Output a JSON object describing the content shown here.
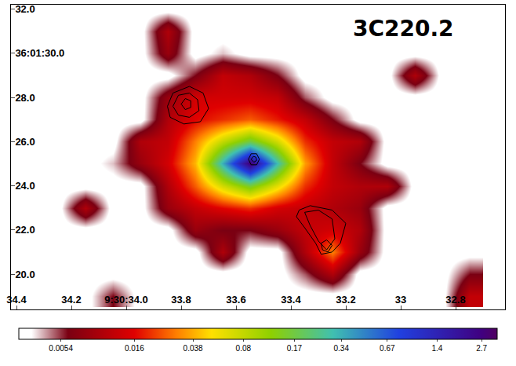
{
  "chart_data": {
    "type": "heatmap",
    "title": "3C220.2",
    "xlim": [
      34.42,
      32.62
    ],
    "xticks": [
      34.4,
      34.2,
      {
        "value": 34.0,
        "label": "9:30:34.0"
      },
      33.8,
      33.6,
      33.4,
      33.2,
      33.0,
      32.8
    ],
    "ylim": [
      18.4,
      32.2
    ],
    "yticks": [
      {
        "value": 32,
        "label": "32.0"
      },
      {
        "value": 30,
        "label": "36:01:30.0"
      },
      {
        "value": 28,
        "label": "28.0"
      },
      {
        "value": 26,
        "label": "26.0"
      },
      {
        "value": 24,
        "label": "24.0"
      },
      {
        "value": 22,
        "label": "22.0"
      },
      {
        "value": 20,
        "label": "20.0"
      }
    ],
    "colorbar": {
      "range": [
        0.0029,
        3.4
      ],
      "ticks": [
        0.0054,
        0.016,
        0.038,
        0.08,
        0.17,
        0.34,
        0.67,
        1.4,
        2.7
      ]
    },
    "cells": {
      "x": [
        34.35,
        34.25,
        34.15,
        34.05,
        33.95,
        33.85,
        33.75,
        33.65,
        33.55,
        33.45,
        33.35,
        33.25,
        33.15,
        33.05,
        32.95,
        32.85,
        32.75
      ],
      "y": [
        19,
        20,
        21,
        22,
        23,
        24,
        25,
        26,
        27,
        28,
        29,
        30,
        31,
        32
      ],
      "z": [
        [
          0.003,
          0.003,
          0.003,
          0.006,
          0.003,
          0.003,
          0.003,
          0.003,
          0.003,
          0.003,
          0.003,
          0.003,
          0.003,
          0.003,
          0.003,
          0.003,
          0.012
        ],
        [
          0.003,
          0.003,
          0.003,
          0.003,
          0.003,
          0.003,
          0.003,
          0.003,
          0.003,
          0.003,
          0.005,
          0.01,
          0.003,
          0.003,
          0.003,
          0.003,
          0.006
        ],
        [
          0.003,
          0.003,
          0.003,
          0.003,
          0.003,
          0.003,
          0.003,
          0.01,
          0.003,
          0.003,
          0.01,
          0.03,
          0.008,
          0.003,
          0.003,
          0.003,
          0.003
        ],
        [
          0.003,
          0.003,
          0.003,
          0.003,
          0.003,
          0.003,
          0.008,
          0.006,
          0.006,
          0.008,
          0.012,
          0.014,
          0.01,
          0.003,
          0.003,
          0.003,
          0.003
        ],
        [
          0.003,
          0.003,
          0.01,
          0.003,
          0.003,
          0.008,
          0.012,
          0.016,
          0.02,
          0.014,
          0.012,
          0.01,
          0.008,
          0.003,
          0.003,
          0.003,
          0.003
        ],
        [
          0.003,
          0.003,
          0.003,
          0.003,
          0.003,
          0.01,
          0.025,
          0.07,
          0.15,
          0.06,
          0.02,
          0.012,
          0.01,
          0.01,
          0.003,
          0.003,
          0.003
        ],
        [
          0.003,
          0.003,
          0.003,
          0.004,
          0.008,
          0.014,
          0.04,
          0.35,
          3.0,
          0.3,
          0.035,
          0.012,
          0.006,
          0.003,
          0.003,
          0.003,
          0.003
        ],
        [
          0.003,
          0.003,
          0.003,
          0.003,
          0.01,
          0.012,
          0.03,
          0.08,
          0.17,
          0.07,
          0.02,
          0.012,
          0.01,
          0.003,
          0.003,
          0.003,
          0.003
        ],
        [
          0.003,
          0.003,
          0.003,
          0.003,
          0.003,
          0.01,
          0.016,
          0.02,
          0.025,
          0.018,
          0.012,
          0.006,
          0.003,
          0.003,
          0.003,
          0.003,
          0.003
        ],
        [
          0.003,
          0.003,
          0.003,
          0.003,
          0.003,
          0.008,
          0.014,
          0.014,
          0.014,
          0.012,
          0.005,
          0.003,
          0.003,
          0.003,
          0.003,
          0.003,
          0.003
        ],
        [
          0.003,
          0.003,
          0.003,
          0.003,
          0.003,
          0.003,
          0.006,
          0.012,
          0.01,
          0.006,
          0.003,
          0.003,
          0.003,
          0.003,
          0.01,
          0.003,
          0.003
        ],
        [
          0.003,
          0.003,
          0.003,
          0.003,
          0.003,
          0.008,
          0.003,
          0.004,
          0.003,
          0.003,
          0.003,
          0.003,
          0.003,
          0.003,
          0.003,
          0.003,
          0.003
        ],
        [
          0.003,
          0.003,
          0.003,
          0.003,
          0.003,
          0.01,
          0.003,
          0.003,
          0.003,
          0.003,
          0.003,
          0.003,
          0.003,
          0.003,
          0.003,
          0.003,
          0.003
        ],
        [
          0.003,
          0.003,
          0.003,
          0.003,
          0.003,
          0.003,
          0.003,
          0.003,
          0.003,
          0.003,
          0.003,
          0.003,
          0.003,
          0.003,
          0.003,
          0.003,
          0.003
        ]
      ]
    },
    "contours": [
      [
        [
          33.85,
          27.6
        ],
        [
          33.83,
          28.2
        ],
        [
          33.77,
          28.5
        ],
        [
          33.72,
          28.2
        ],
        [
          33.7,
          27.5
        ],
        [
          33.73,
          26.9
        ],
        [
          33.79,
          26.8
        ],
        [
          33.84,
          27.1
        ],
        [
          33.85,
          27.6
        ]
      ],
      [
        [
          33.83,
          27.6
        ],
        [
          33.81,
          28.1
        ],
        [
          33.77,
          28.2
        ],
        [
          33.74,
          27.9
        ],
        [
          33.735,
          27.4
        ],
        [
          33.77,
          27.1
        ],
        [
          33.81,
          27.2
        ],
        [
          33.83,
          27.6
        ]
      ],
      [
        [
          33.8,
          27.7
        ],
        [
          33.785,
          27.95
        ],
        [
          33.765,
          27.85
        ],
        [
          33.765,
          27.55
        ],
        [
          33.785,
          27.45
        ],
        [
          33.8,
          27.7
        ]
      ],
      [
        [
          33.555,
          25.2
        ],
        [
          33.545,
          25.45
        ],
        [
          33.525,
          25.45
        ],
        [
          33.515,
          25.2
        ],
        [
          33.525,
          24.95
        ],
        [
          33.545,
          24.95
        ],
        [
          33.555,
          25.2
        ]
      ],
      [
        [
          33.545,
          25.2
        ],
        [
          33.537,
          25.33
        ],
        [
          33.528,
          25.3
        ],
        [
          33.525,
          25.15
        ],
        [
          33.535,
          25.07
        ],
        [
          33.545,
          25.2
        ]
      ],
      [
        [
          33.37,
          22.9
        ],
        [
          33.33,
          23.1
        ],
        [
          33.25,
          22.9
        ],
        [
          33.2,
          22.3
        ],
        [
          33.22,
          21.4
        ],
        [
          33.25,
          21.0
        ],
        [
          33.29,
          20.9
        ],
        [
          33.31,
          21.4
        ],
        [
          33.35,
          22.1
        ],
        [
          33.38,
          22.6
        ],
        [
          33.37,
          22.9
        ]
      ],
      [
        [
          33.35,
          22.8
        ],
        [
          33.3,
          22.9
        ],
        [
          33.25,
          22.5
        ],
        [
          33.24,
          21.6
        ],
        [
          33.27,
          21.1
        ],
        [
          33.3,
          21.5
        ],
        [
          33.33,
          22.2
        ],
        [
          33.35,
          22.8
        ]
      ],
      [
        [
          33.29,
          21.4
        ],
        [
          33.27,
          21.55
        ],
        [
          33.25,
          21.3
        ],
        [
          33.265,
          21.0
        ],
        [
          33.285,
          21.1
        ],
        [
          33.29,
          21.4
        ]
      ]
    ]
  }
}
